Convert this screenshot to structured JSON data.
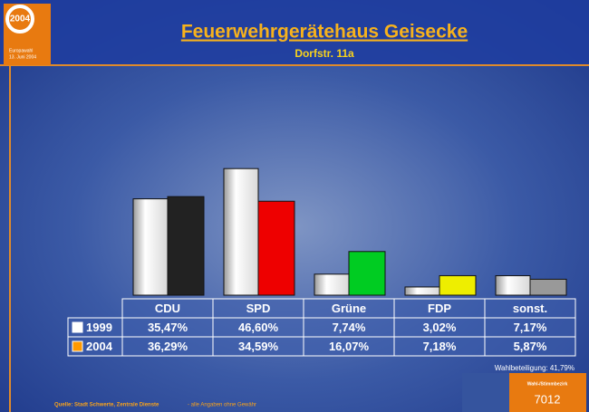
{
  "chart_data": {
    "type": "bar",
    "title": "Feuerwehrgerätehaus Geisecke",
    "subtitle": "Dorfstr. 11a",
    "logo_text": "2004",
    "logo_caption": [
      "Europawahl",
      "13. Juni 2004"
    ],
    "categories": [
      "CDU",
      "SPD",
      "Grüne",
      "FDP",
      "sonst."
    ],
    "series": [
      {
        "name": "1999",
        "color": "#ffffff",
        "values": [
          35.47,
          46.6,
          7.74,
          3.02,
          7.17
        ],
        "value_labels": [
          "35,47%",
          "46,60%",
          "7,74%",
          "3,02%",
          "7,17%"
        ]
      },
      {
        "name": "2004",
        "color": "#ff9900",
        "bar_colors": [
          "#222222",
          "#ee0000",
          "#00cc22",
          "#eeee00",
          "#999999"
        ],
        "values": [
          36.29,
          34.59,
          16.07,
          7.18,
          5.87
        ],
        "value_labels": [
          "36,29%",
          "34,59%",
          "16,07%",
          "7,18%",
          "5,87%"
        ]
      }
    ],
    "turnout": "Wahlbeteiligung: 41,79%",
    "source": "Quelle: Stadt Schwerte, Zentrale Dienste",
    "disclaimer": "- alle Angaben ohne Gewähr",
    "district_label": "Wahl-/Stimmbezirk",
    "district_number": "7012"
  }
}
